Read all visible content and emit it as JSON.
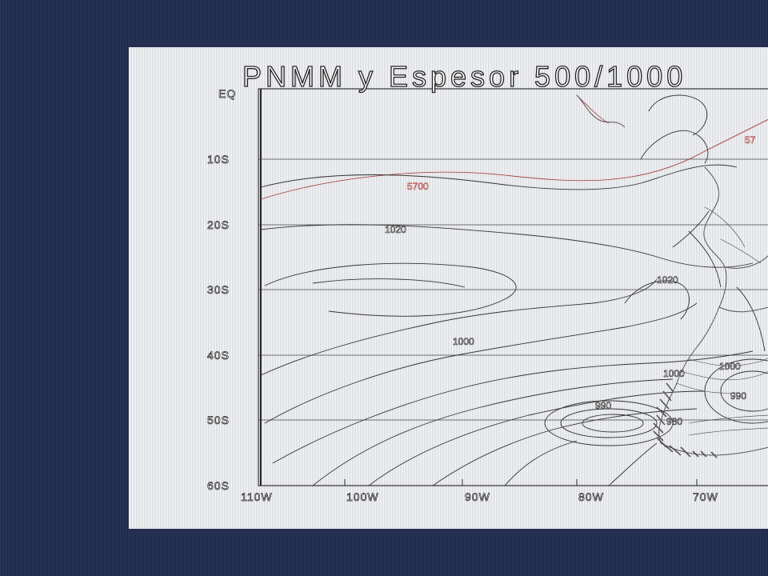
{
  "map": {
    "title": "PNMM y Espesor 500/1000",
    "lat_labels": [
      "EQ",
      "10S",
      "20S",
      "30S",
      "40S",
      "50S",
      "60S"
    ],
    "lon_labels": [
      "110W",
      "100W",
      "90W",
      "80W",
      "70W"
    ],
    "isobar_labels": [
      {
        "text": "1020",
        "color": "dark"
      },
      {
        "text": "1020",
        "color": "dark"
      },
      {
        "text": "1000",
        "color": "dark"
      },
      {
        "text": "1000",
        "color": "dark"
      },
      {
        "text": "990",
        "color": "dark"
      },
      {
        "text": "990",
        "color": "dark"
      },
      {
        "text": "980",
        "color": "dark"
      },
      {
        "text": "5700",
        "color": "red"
      },
      {
        "text": "57",
        "color": "red"
      },
      {
        "text": "1000",
        "color": "dark"
      }
    ],
    "colors": {
      "background": "#232f52",
      "map_line": "#333333",
      "thickness_line": "#a33333",
      "coast": "#555555"
    }
  }
}
